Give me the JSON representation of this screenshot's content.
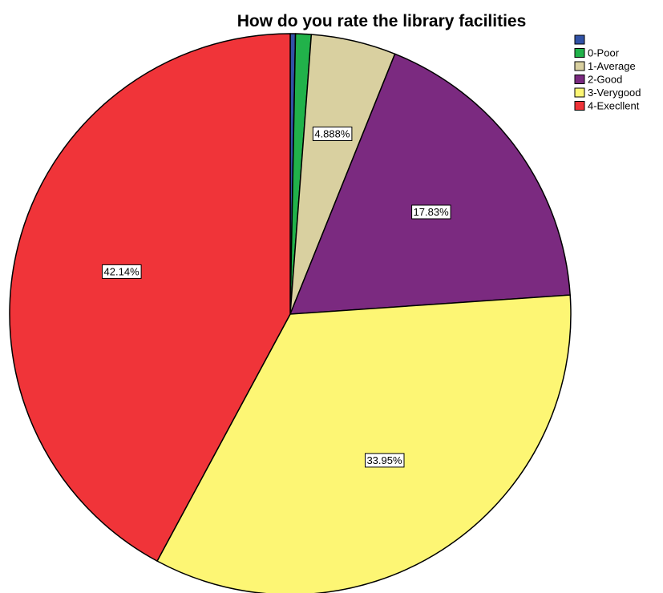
{
  "chart_data": {
    "type": "pie",
    "title": "How do you rate the library facilities",
    "legend_position": "top-right",
    "slices": [
      {
        "label": "",
        "value": 0.3,
        "color": "#3152a6",
        "data_label": ""
      },
      {
        "label": "0-Poor",
        "value": 0.9,
        "color": "#21b24a",
        "data_label": ""
      },
      {
        "label": "1-Average",
        "value": 4.888,
        "color": "#d9d0a0",
        "data_label": "4.888%"
      },
      {
        "label": "2-Good",
        "value": 17.83,
        "color": "#7b2a80",
        "data_label": "17.83%"
      },
      {
        "label": "3-Verygood",
        "value": 33.95,
        "color": "#fdf674",
        "data_label": "33.95%"
      },
      {
        "label": "4-Execllent",
        "value": 42.14,
        "color": "#f03439",
        "data_label": "42.14%"
      }
    ]
  }
}
